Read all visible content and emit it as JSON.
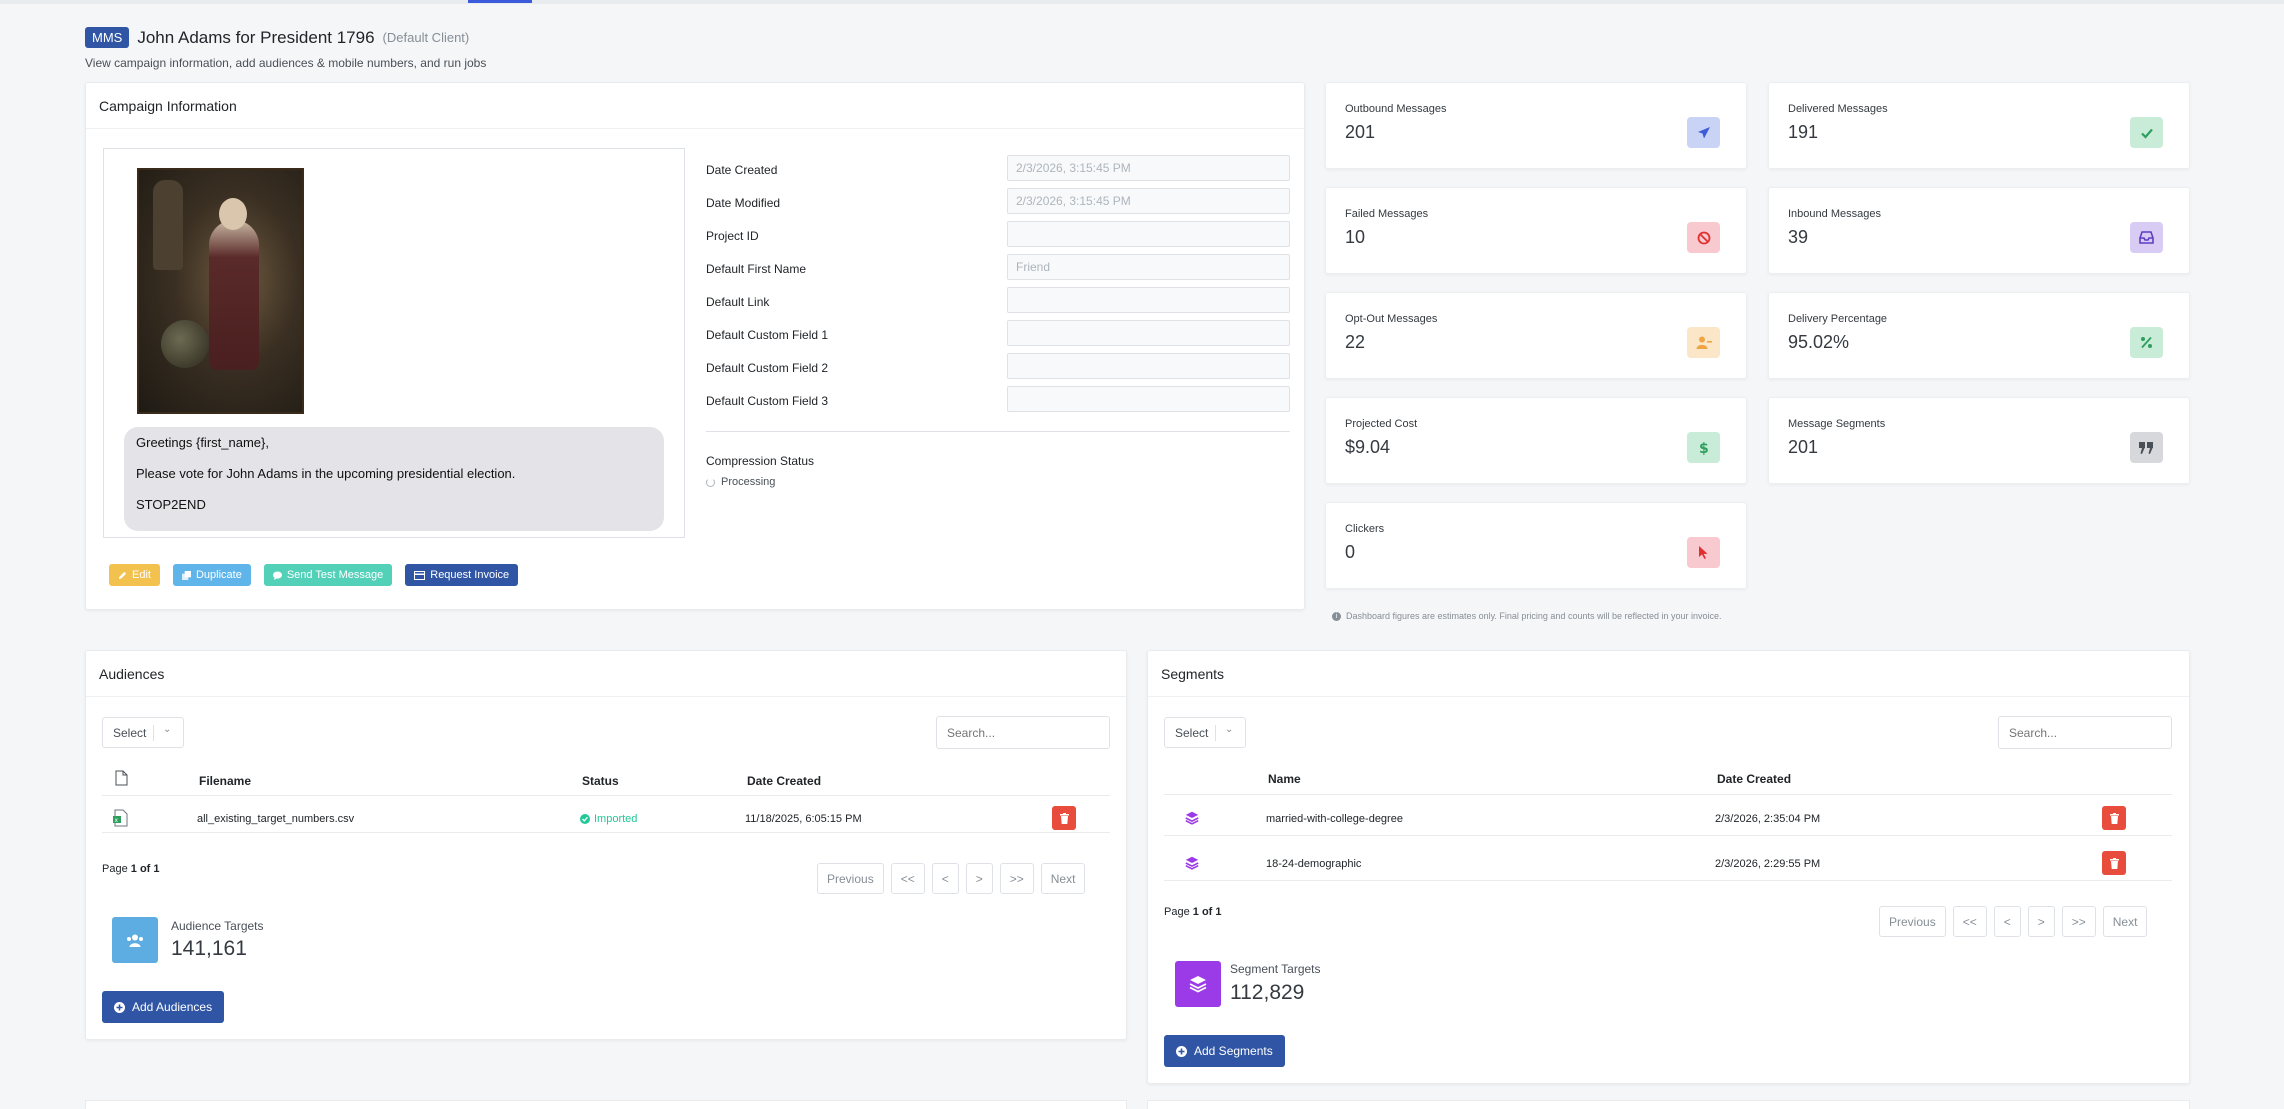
{
  "header": {
    "badge": "MMS",
    "title": "John Adams for President 1796",
    "client": "(Default Client)",
    "subtitle": "View campaign information, add audiences & mobile numbers, and run jobs"
  },
  "campaign": {
    "heading": "Campaign Information",
    "message": {
      "line1": "Greetings {first_name},",
      "line2": "Please vote for John Adams in the upcoming presidential election.",
      "line3": "STOP2END"
    },
    "fields": [
      {
        "label": "Date Created",
        "value": "2/3/2026, 3:15:45 PM"
      },
      {
        "label": "Date Modified",
        "value": "2/3/2026, 3:15:45 PM"
      },
      {
        "label": "Project ID",
        "value": ""
      },
      {
        "label": "Default First Name",
        "value": "Friend"
      },
      {
        "label": "Default Link",
        "value": ""
      },
      {
        "label": "Default Custom Field 1",
        "value": ""
      },
      {
        "label": "Default Custom Field 2",
        "value": ""
      },
      {
        "label": "Default Custom Field 3",
        "value": ""
      }
    ],
    "compression_label": "Compression Status",
    "compression_value": "Processing",
    "buttons": {
      "edit": "Edit",
      "duplicate": "Duplicate",
      "test": "Send Test Message",
      "invoice": "Request Invoice"
    }
  },
  "stats": [
    {
      "label": "Outbound Messages",
      "value": "201",
      "icon": "paper-plane-icon",
      "bg": "#c9d3f5",
      "fg": "#3b5bdb"
    },
    {
      "label": "Delivered Messages",
      "value": "191",
      "icon": "check-icon",
      "bg": "#c8ecd7",
      "fg": "#2f9e5e"
    },
    {
      "label": "Failed Messages",
      "value": "10",
      "icon": "ban-icon",
      "bg": "#f8c9cf",
      "fg": "#e03131"
    },
    {
      "label": "Inbound Messages",
      "value": "39",
      "icon": "inbox-icon",
      "bg": "#d8ccf5",
      "fg": "#5f3dc4"
    },
    {
      "label": "Opt-Out Messages",
      "value": "22",
      "icon": "user-minus-icon",
      "bg": "#fbe6c8",
      "fg": "#f0a545"
    },
    {
      "label": "Delivery Percentage",
      "value": "95.02%",
      "icon": "percent-icon",
      "bg": "#c8ecd7",
      "fg": "#2f9e5e"
    },
    {
      "label": "Projected Cost",
      "value": "$9.04",
      "icon": "dollar-icon",
      "bg": "#c8ecd7",
      "fg": "#2f9e5e"
    },
    {
      "label": "Message Segments",
      "value": "201",
      "icon": "quote-icon",
      "bg": "#d6d8db",
      "fg": "#495057"
    },
    {
      "label": "Clickers",
      "value": "0",
      "icon": "pointer-icon",
      "bg": "#f8c9cf",
      "fg": "#e03131"
    }
  ],
  "note": "Dashboard figures are estimates only. Final pricing and counts will be reflected in your invoice.",
  "audiences": {
    "heading": "Audiences",
    "select": "Select",
    "search_placeholder": "Search...",
    "columns": {
      "filename": "Filename",
      "status": "Status",
      "date": "Date Created"
    },
    "rows": [
      {
        "filename": "all_existing_target_numbers.csv",
        "status": "Imported",
        "date": "11/18/2025, 6:05:15 PM"
      }
    ],
    "page_prefix": "Page",
    "page_current": "1 of 1",
    "pager": [
      "Previous",
      "<<",
      "<",
      ">",
      ">>",
      "Next"
    ],
    "targets_label": "Audience Targets",
    "targets_value": "141,161",
    "add_label": "Add Audiences"
  },
  "segments": {
    "heading": "Segments",
    "select": "Select",
    "search_placeholder": "Search...",
    "columns": {
      "name": "Name",
      "date": "Date Created"
    },
    "rows": [
      {
        "name": "married-with-college-degree",
        "date": "2/3/2026, 2:35:04 PM"
      },
      {
        "name": "18-24-demographic",
        "date": "2/3/2026, 2:29:55 PM"
      }
    ],
    "page_prefix": "Page",
    "page_current": "1 of 1",
    "pager": [
      "Previous",
      "<<",
      "<",
      ">",
      ">>",
      "Next"
    ],
    "targets_label": "Segment Targets",
    "targets_value": "112,829",
    "add_label": "Add Segments"
  }
}
